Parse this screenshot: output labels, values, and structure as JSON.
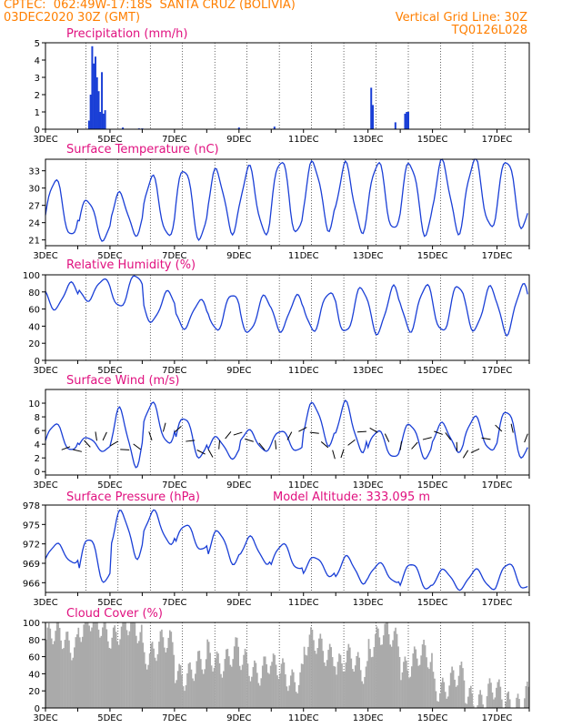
{
  "header": {
    "line1": "CPTEC:  062:49W-17:18S  SANTA CRUZ (BOLIVIA)",
    "line2_left": "03DEC2020 30Z (GMT)",
    "line2_right": "Vertical Grid Line: 30Z",
    "line3_right": "TQ0126L028"
  },
  "colors": {
    "header": "#ff7f00",
    "title": "#e0107f",
    "series": "#1a3fd6",
    "cloud": "#aaaaaa"
  },
  "date_labels": [
    "3DEC",
    "5DEC",
    "7DEC",
    "9DEC",
    "11DEC",
    "13DEC",
    "15DEC",
    "17DEC"
  ],
  "chart_data": [
    {
      "type": "bar",
      "title": "Precipitation (mm/h)",
      "ylim": [
        0,
        5
      ],
      "yticks": [
        "0",
        "1",
        "2",
        "3",
        "4",
        "5"
      ],
      "x_start": "3DEC",
      "x_end": "18DEC",
      "events": [
        [
          4.35,
          0.5
        ],
        [
          4.4,
          2.0
        ],
        [
          4.45,
          4.8
        ],
        [
          4.5,
          3.8
        ],
        [
          4.55,
          4.2
        ],
        [
          4.6,
          3.0
        ],
        [
          4.65,
          2.2
        ],
        [
          4.7,
          1.0
        ],
        [
          4.75,
          3.3
        ],
        [
          4.8,
          0.9
        ],
        [
          4.85,
          1.1
        ],
        [
          5.4,
          0.1
        ],
        [
          5.9,
          0.05
        ],
        [
          6.0,
          0.05
        ],
        [
          9.0,
          0.1
        ],
        [
          10.1,
          0.15
        ],
        [
          13.1,
          2.4
        ],
        [
          13.15,
          1.4
        ],
        [
          13.85,
          0.4
        ],
        [
          14.15,
          0.9
        ],
        [
          14.2,
          1.0
        ],
        [
          14.25,
          1.0
        ]
      ]
    },
    {
      "type": "line",
      "title": "Surface Temperature (nC)",
      "ylim": [
        20,
        35
      ],
      "yticks": [
        "21",
        "24",
        "27",
        "30",
        "33"
      ],
      "daily_min": [
        21.5,
        21.0,
        22.0,
        21.5,
        21.0,
        22.5,
        22.0,
        22.0,
        23.0,
        22.5,
        22.5,
        22.0,
        22.5,
        23.0,
        23.0,
        23.5
      ],
      "daily_max": [
        31.5,
        28.0,
        29.0,
        32.0,
        33.5,
        33.0,
        33.5,
        35.0,
        34.5,
        34.0,
        34.5,
        34.5,
        34.5,
        35.0,
        35.0,
        35.0
      ]
    },
    {
      "type": "line",
      "title": "Relative Humidity (%)",
      "ylim": [
        0,
        100
      ],
      "yticks": [
        "0",
        "20",
        "40",
        "60",
        "80",
        "100"
      ],
      "daily_min": [
        60,
        70,
        62,
        45,
        38,
        35,
        32,
        35,
        35,
        32,
        32,
        35,
        33,
        35,
        32,
        30
      ],
      "daily_max": [
        90,
        95,
        100,
        80,
        70,
        78,
        75,
        75,
        80,
        85,
        85,
        88,
        88,
        85,
        88,
        85
      ]
    },
    {
      "type": "line",
      "title": "Surface Wind (m/s)",
      "ylim": [
        -0.5,
        12
      ],
      "yticks": [
        "0",
        "2",
        "4",
        "6",
        "8",
        "10"
      ],
      "daily_min": [
        3,
        3,
        1,
        4,
        2,
        2,
        3,
        3,
        4,
        3,
        2,
        2,
        3,
        3,
        2,
        3
      ],
      "daily_max": [
        7,
        5,
        9,
        10,
        8,
        5,
        6,
        6,
        10,
        10,
        6,
        7,
        7,
        8,
        9,
        9
      ]
    },
    {
      "type": "line",
      "title": "Surface Pressure (hPa)",
      "subtitle": "Model Altitude: 333.095 m",
      "ylim": [
        964.5,
        978
      ],
      "yticks": [
        "966",
        "969",
        "972",
        "975",
        "978"
      ],
      "daily_min": [
        969,
        966,
        970,
        972,
        971,
        969,
        969,
        968,
        967,
        966,
        966,
        965,
        965,
        965,
        965,
        965
      ],
      "daily_max": [
        972,
        973,
        977,
        977,
        975,
        974,
        973,
        972,
        970,
        970,
        969,
        969,
        968,
        968,
        969,
        968
      ]
    },
    {
      "type": "area",
      "title": "Cloud Cover (%)",
      "ylim": [
        0,
        100
      ],
      "yticks": [
        "0",
        "20",
        "40",
        "60",
        "80",
        "100"
      ],
      "daily_mean": [
        80,
        95,
        90,
        70,
        45,
        60,
        50,
        40,
        70,
        50,
        80,
        55,
        30,
        15,
        10,
        5
      ]
    }
  ]
}
